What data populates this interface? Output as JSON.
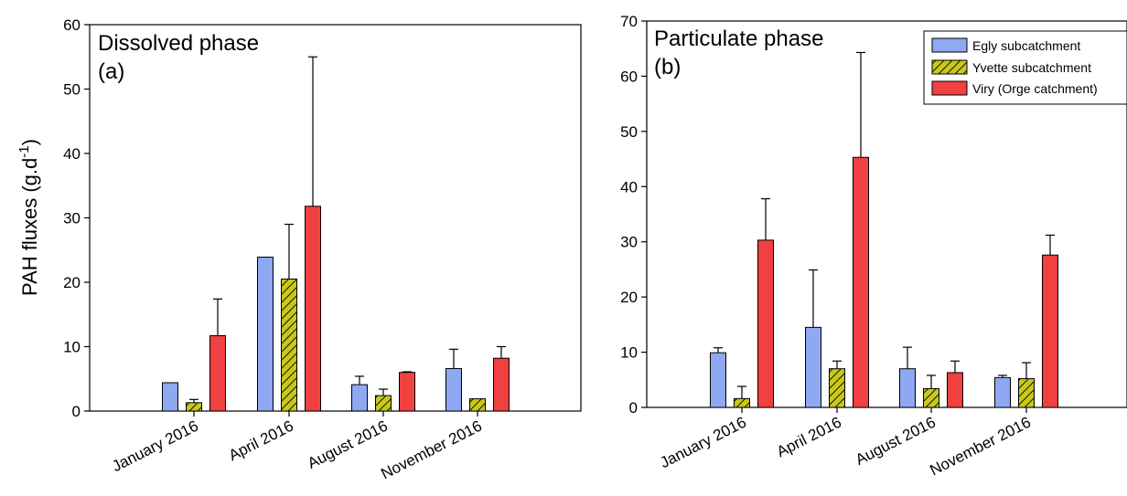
{
  "colors": {
    "egly": "#8ea8f2",
    "yvette": "#c8c81a",
    "viry": "#f04040"
  },
  "chart_data": [
    {
      "type": "bar",
      "title": "Dissolved phase",
      "panel_label": "(a)",
      "ylabel": "PAH fluxes (g.d",
      "ylabel_sup": "-1",
      "ylabel_close": ")",
      "ylim": [
        0,
        60
      ],
      "yticks": [
        "0",
        "10",
        "20",
        "30",
        "40",
        "50",
        "60"
      ],
      "categories": [
        "January 2016",
        "April 2016",
        "August 2016",
        "November 2016"
      ],
      "series": [
        {
          "name": "Egly subcatchment",
          "values": [
            4.4,
            23.9,
            4.1,
            6.6
          ],
          "errors": [
            0,
            0,
            1.3,
            3.0
          ]
        },
        {
          "name": "Yvette subcatchment",
          "values": [
            1.3,
            20.5,
            2.4,
            1.9
          ],
          "errors": [
            0.5,
            8.5,
            1.0,
            0
          ]
        },
        {
          "name": "Viry (Orge catchment)",
          "values": [
            11.7,
            31.8,
            6.0,
            8.2
          ],
          "errors": [
            5.7,
            23.2,
            0.1,
            1.8
          ]
        }
      ]
    },
    {
      "type": "bar",
      "title": "Particulate phase",
      "panel_label": "(b)",
      "ylim": [
        0,
        70
      ],
      "yticks": [
        "0",
        "10",
        "20",
        "30",
        "40",
        "50",
        "60",
        "70"
      ],
      "categories": [
        "January 2016",
        "April 2016",
        "August 2016",
        "November 2016"
      ],
      "legend": [
        "Egly subcatchment",
        "Yvette subcatchment",
        "Viry (Orge catchment)"
      ],
      "legend_position": "top-right",
      "series": [
        {
          "name": "Egly subcatchment",
          "values": [
            9.9,
            14.5,
            7.0,
            5.4
          ],
          "errors": [
            0.9,
            10.4,
            3.9,
            0.4
          ]
        },
        {
          "name": "Yvette subcatchment",
          "values": [
            1.6,
            7.0,
            3.4,
            5.2
          ],
          "errors": [
            2.2,
            1.4,
            2.4,
            2.9
          ]
        },
        {
          "name": "Viry (Orge catchment)",
          "values": [
            30.3,
            45.3,
            6.3,
            27.6
          ],
          "errors": [
            7.5,
            19.0,
            2.1,
            3.6
          ]
        }
      ]
    }
  ]
}
